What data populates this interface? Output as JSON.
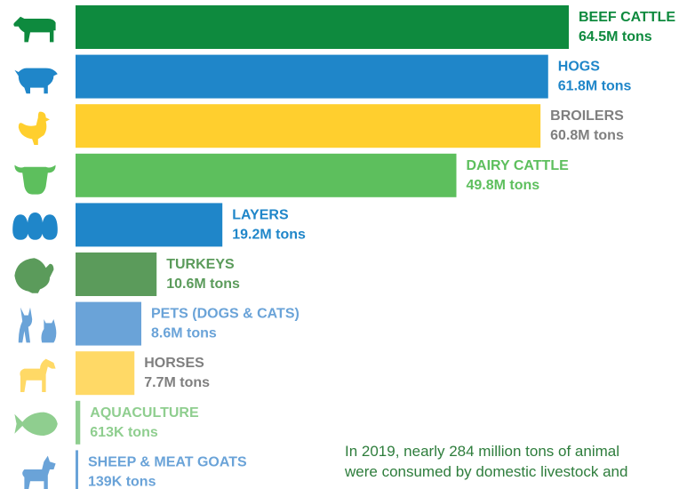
{
  "chart_data": {
    "type": "bar",
    "orientation": "horizontal",
    "unit": "tons",
    "categories": [
      {
        "label": "BEEF CATTLE",
        "value_label": "64.5M tons",
        "value": 64500000,
        "color": "#0e8a3e",
        "label_color": "#0e8a3e",
        "icon": "cow-icon"
      },
      {
        "label": "HOGS",
        "value_label": "61.8M tons",
        "value": 61800000,
        "color": "#1f86c9",
        "label_color": "#1f86c9",
        "icon": "pig-icon"
      },
      {
        "label": "BROILERS",
        "value_label": "60.8M tons",
        "value": 60800000,
        "color": "#ffcf2e",
        "label_color": "#7f7f7f",
        "icon": "chicken-icon"
      },
      {
        "label": "DAIRY CATTLE",
        "value_label": "49.8M tons",
        "value": 49800000,
        "color": "#5dbf5d",
        "label_color": "#5dbf5d",
        "icon": "dairy-cow-head-icon"
      },
      {
        "label": "LAYERS",
        "value_label": "19.2M tons",
        "value": 19200000,
        "color": "#1f86c9",
        "label_color": "#1f86c9",
        "icon": "eggs-icon"
      },
      {
        "label": "TURKEYS",
        "value_label": "10.6M tons",
        "value": 10600000,
        "color": "#5b9b5b",
        "label_color": "#5b9b5b",
        "icon": "turkey-icon"
      },
      {
        "label": "PETS (DOGS & CATS)",
        "value_label": "8.6M tons",
        "value": 8600000,
        "color": "#6aa3d8",
        "label_color": "#6aa3d8",
        "icon": "dog-cat-icon"
      },
      {
        "label": "HORSES",
        "value_label": "7.7M tons",
        "value": 7700000,
        "color": "#ffd966",
        "label_color": "#7f7f7f",
        "icon": "horse-icon"
      },
      {
        "label": "AQUACULTURE",
        "value_label": "613K tons",
        "value": 613000,
        "color": "#8fce8f",
        "label_color": "#8fce8f",
        "icon": "fish-icon"
      },
      {
        "label": "SHEEP & MEAT GOATS",
        "value_label": "139K tons",
        "value": 139000,
        "color": "#6aa3d8",
        "label_color": "#6aa3d8",
        "icon": "goat-icon"
      }
    ]
  },
  "caption": {
    "line1": "In 2019, nearly 284 million tons of animal",
    "line2": "were consumed by domestic livestock and"
  },
  "colors": {
    "caption_text": "#2e7d3c"
  }
}
